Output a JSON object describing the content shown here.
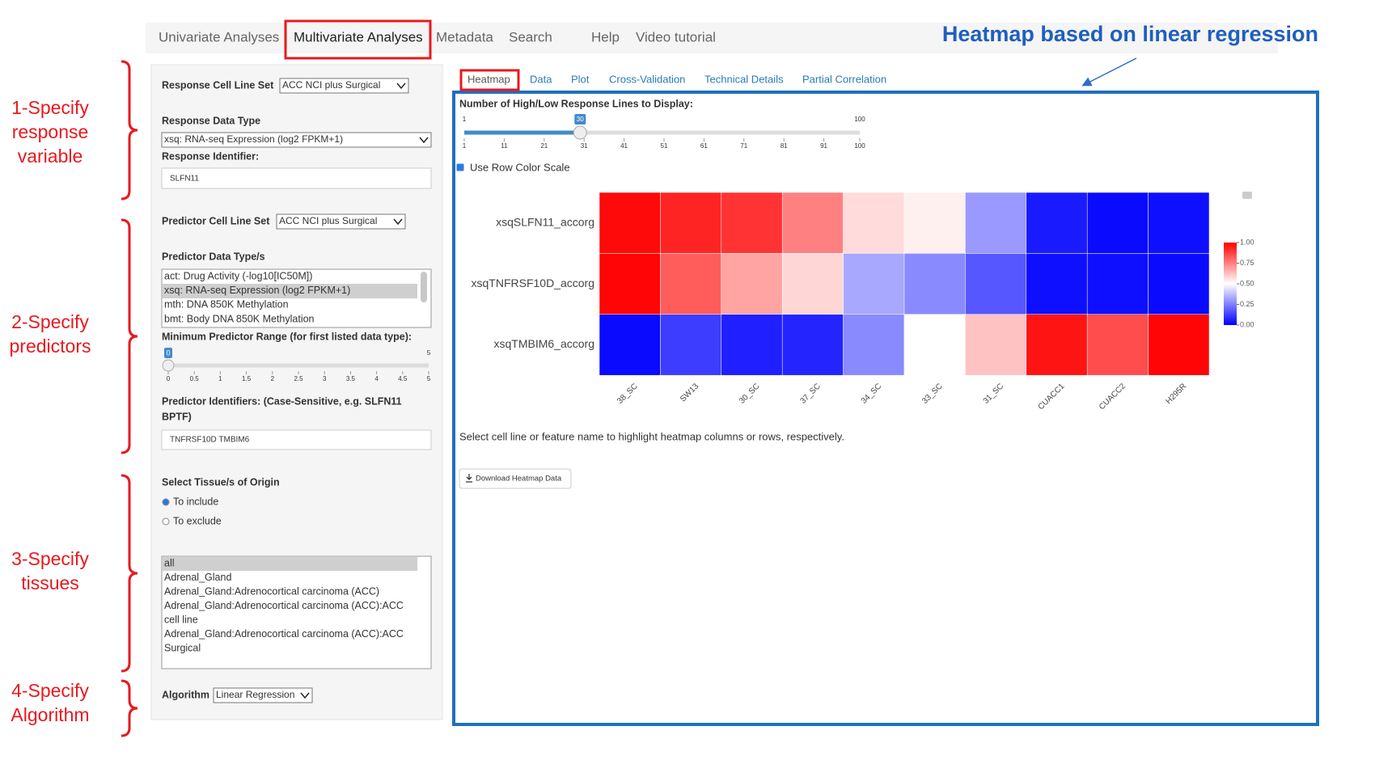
{
  "nav": {
    "tabs": [
      "Univariate Analyses",
      "Multivariate Analyses",
      "Metadata",
      "Search",
      "Help",
      "Video tutorial"
    ],
    "active": 1
  },
  "annotation_title": "Heatmap based on linear regression",
  "steps": [
    [
      "1-Specify",
      "response",
      "variable"
    ],
    [
      "2-Specify",
      "predictors"
    ],
    [
      "3-Specify",
      "tissues"
    ],
    [
      "4-Specify",
      "Algorithm"
    ]
  ],
  "sidebar": {
    "response_cell_line_set": {
      "label": "Response Cell Line Set",
      "value": "ACC NCI plus Surgical"
    },
    "response_data_type": {
      "label": "Response Data Type",
      "value": "xsq: RNA-seq Expression (log2 FPKM+1)"
    },
    "response_identifier": {
      "label": "Response Identifier:",
      "value": "SLFN11"
    },
    "predictor_cell_line_set": {
      "label": "Predictor Cell Line Set",
      "value": "ACC NCI plus Surgical"
    },
    "predictor_data_types": {
      "label": "Predictor Data Type/s",
      "options": [
        "act: Drug Activity (-log10[IC50M])",
        "xsq: RNA-seq Expression (log2 FPKM+1)",
        "mth: DNA 850K Methylation",
        "bmt: Body DNA 850K Methylation"
      ],
      "selected": 1
    },
    "min_predictor_range": {
      "label": "Minimum Predictor Range (for first listed data type):",
      "min": 0,
      "max": 5,
      "value": 0,
      "ticks": [
        0,
        0.5,
        1,
        1.5,
        2,
        2.5,
        3,
        3.5,
        4,
        4.5,
        5
      ]
    },
    "predictor_identifiers": {
      "label": [
        "Predictor Identifiers: (Case-Sensitive, e.g. SLFN11",
        "BPTF)"
      ],
      "value": "TNFRSF10D TMBIM6"
    },
    "tissue": {
      "label": "Select Tissue/s of Origin",
      "radio": [
        "To include",
        "To exclude"
      ],
      "radio_selected": 0,
      "options": [
        [
          "all"
        ],
        [
          "Adrenal_Gland"
        ],
        [
          "Adrenal_Gland:Adrenocortical carcinoma (ACC)"
        ],
        [
          "Adrenal_Gland:Adrenocortical carcinoma (ACC):ACC",
          "cell line"
        ],
        [
          "Adrenal_Gland:Adrenocortical carcinoma (ACC):ACC",
          "Surgical"
        ]
      ],
      "selected": 0
    },
    "algorithm": {
      "label": "Algorithm",
      "value": "Linear Regression"
    }
  },
  "main": {
    "tabs": [
      "Heatmap",
      "Data",
      "Plot",
      "Cross-Validation",
      "Technical Details",
      "Partial Correlation"
    ],
    "active": 0,
    "slider": {
      "label": "Number of High/Low Response Lines to Display:",
      "min": 1,
      "max": 100,
      "value": 30,
      "ticks": [
        1,
        11,
        21,
        31,
        41,
        51,
        61,
        71,
        81,
        91,
        100
      ]
    },
    "checkbox": "Use Row Color Scale",
    "heatmap": {
      "rows": [
        "xsqSLFN11_accorg",
        "xsqTNFRSF10D_accorg",
        "xsqTMBIM6_accorg"
      ],
      "columns": [
        "38_SC",
        "SW13",
        "30_SC",
        "37_SC",
        "34_SC",
        "33_SC",
        "31_SC",
        "CUACC1",
        "CUACC2",
        "H295R"
      ],
      "values": [
        [
          0.98,
          0.93,
          0.9,
          0.75,
          0.57,
          0.53,
          0.3,
          0.05,
          0.02,
          0.03
        ],
        [
          0.99,
          0.82,
          0.68,
          0.58,
          0.33,
          0.27,
          0.17,
          0.03,
          0.03,
          0.02
        ],
        [
          0.02,
          0.12,
          0.06,
          0.07,
          0.27,
          0.5,
          0.62,
          0.96,
          0.85,
          0.99
        ]
      ],
      "colorbar_lim": [
        0,
        1
      ],
      "colorbar_ticks": [
        {
          "value": 0,
          "label": "0.00"
        },
        {
          "value": 0.25,
          "label": "0.25"
        },
        {
          "value": 0.5,
          "label": "0.50"
        },
        {
          "value": 0.75,
          "label": "0.75"
        },
        {
          "value": 1,
          "label": "1.00"
        }
      ]
    },
    "note": "Select cell line or feature name to highlight heatmap columns or rows, respectively.",
    "button": "Download Heatmap Data"
  }
}
